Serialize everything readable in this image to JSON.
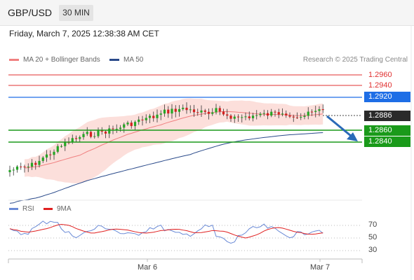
{
  "header": {
    "symbol": "GBP/USD",
    "timeframe": "30 MIN"
  },
  "datetime": "Friday, March 7, 2025 12:38:38 AM CET",
  "legend": {
    "ma20_label": "MA 20 + Bollinger Bands",
    "ma50_label": "MA 50",
    "research": "Research © 2025 Trading Central"
  },
  "levels": {
    "r2": "1.2960",
    "r1": "1.2940",
    "pivot": "1.2920",
    "last": "1.2886",
    "s1": "1.2860",
    "s2": "1.2840"
  },
  "rsi_legend": {
    "rsi_label": "RSI",
    "ma_label": "9MA"
  },
  "rsi_levels": {
    "upper": "70",
    "mid": "50",
    "lower": "30"
  },
  "x_axis": {
    "day1": "Mar 6",
    "day2": "Mar 7"
  },
  "colors": {
    "up": "#26a626",
    "down": "#d42020",
    "ma20": "#f08080",
    "ma50": "#2a4a8a",
    "band_fill": "#fbd9d5",
    "resistance": "#e03030",
    "pivot": "#1e6ee6",
    "support": "#1a9a1a",
    "rsi": "#6a8ad6",
    "rsi_ma": "#e02020",
    "arrow": "#2a6ab8"
  }
}
